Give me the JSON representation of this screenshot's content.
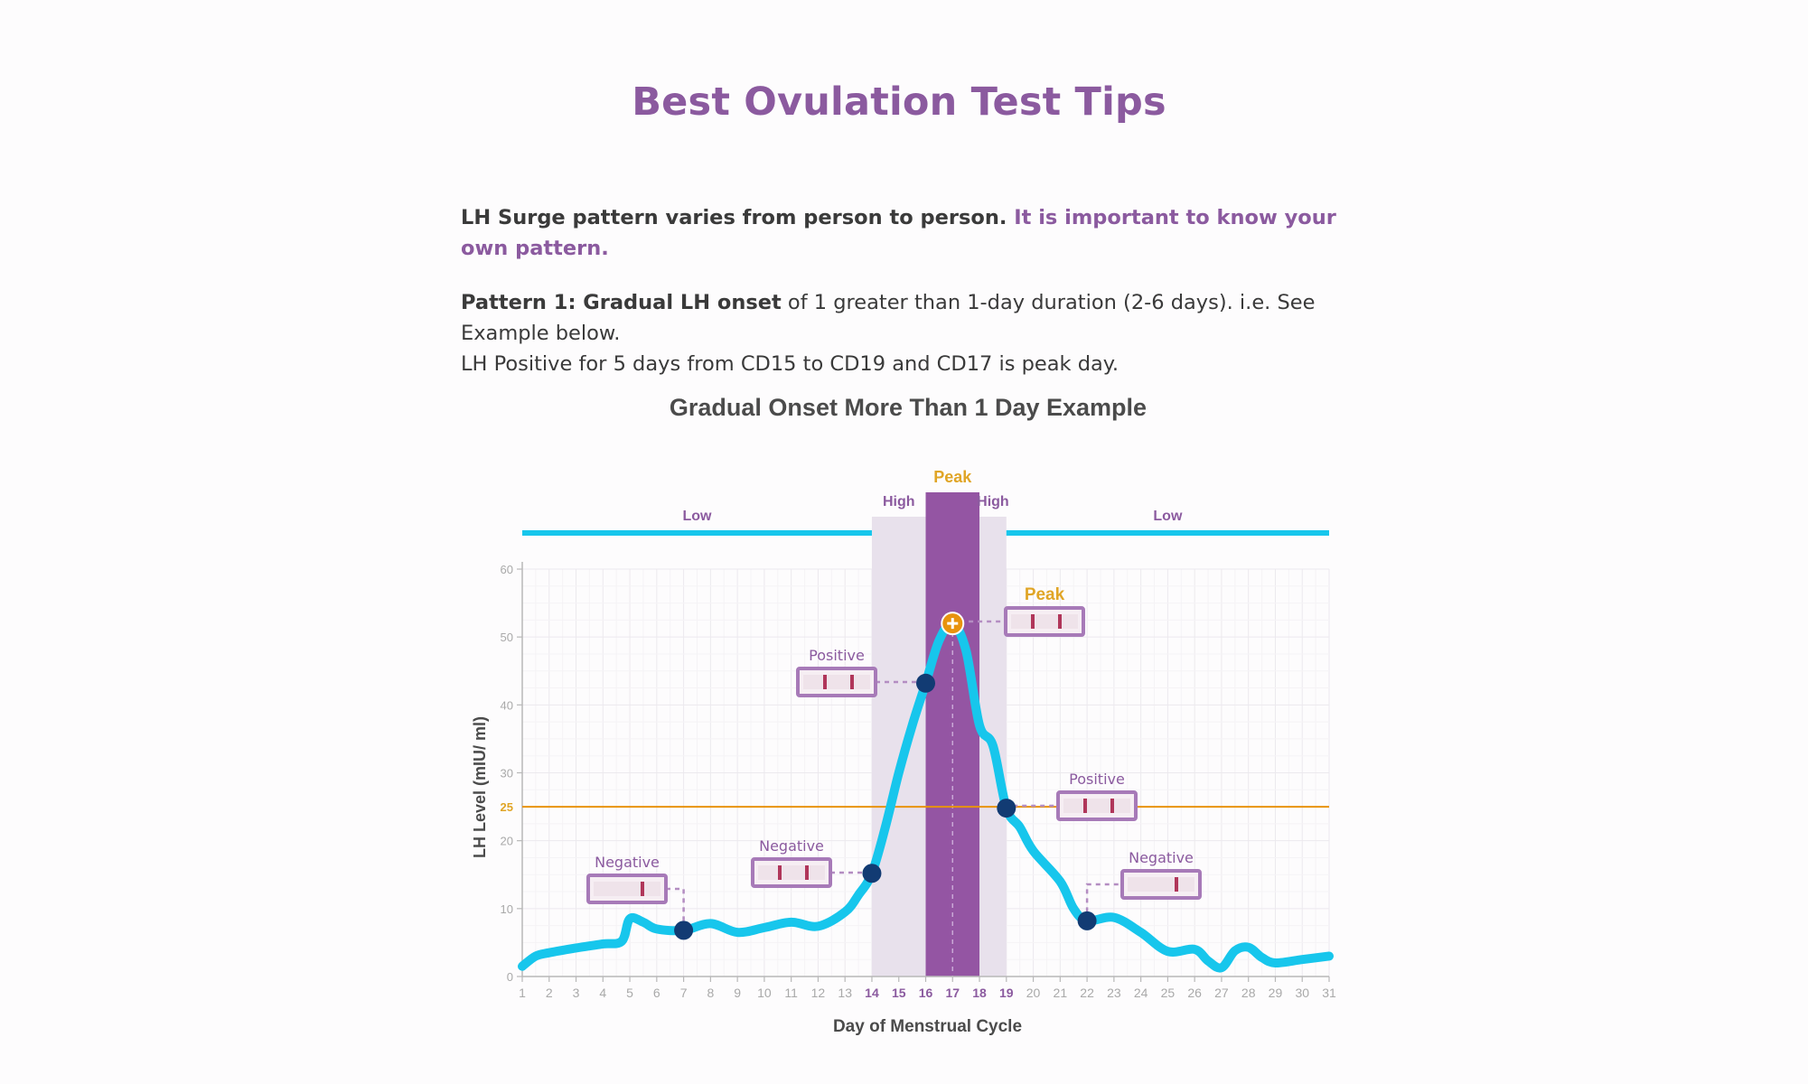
{
  "page": {
    "title": "Best Ovulation Test Tips",
    "intro_line1_a": "LH Surge pattern varies from person to person.",
    "intro_line1_b": "It is important to know your own pattern.",
    "pattern_label": "Pattern 1: Gradual LH onset",
    "pattern_text": "of 1 greater than 1-day duration (2-6 days). i.e. See Example below.",
    "pattern_line2": "LH Positive for 5 days from CD15 to CD19 and CD17 is peak day."
  },
  "colors": {
    "accent": "#8b5a9f",
    "curve": "#17c6ec",
    "peak_band": "#9455a3",
    "high_band": "#e8e1ec",
    "threshold": "#e8930e",
    "peak_label": "#e0a526",
    "marker": "#123b73"
  },
  "chart_data": {
    "type": "line",
    "title": "Gradual Onset More Than 1 Day Example",
    "xlabel": "Day of Menstrual Cycle",
    "ylabel": "LH Level (mIU/ ml)",
    "xlim": [
      1,
      31
    ],
    "ylim": [
      0,
      60
    ],
    "y_ticks": [
      0,
      10,
      20,
      30,
      40,
      50,
      60
    ],
    "x_ticks": [
      1,
      2,
      3,
      4,
      5,
      6,
      7,
      8,
      9,
      10,
      11,
      12,
      13,
      14,
      15,
      16,
      17,
      18,
      19,
      20,
      21,
      22,
      23,
      24,
      25,
      26,
      27,
      28,
      29,
      30,
      31
    ],
    "bold_x_ticks": [
      14,
      15,
      16,
      17,
      18,
      19
    ],
    "grid": true,
    "threshold": {
      "value": 25,
      "label": "25"
    },
    "series": [
      {
        "name": "",
        "x": [
          1,
          1.5,
          2,
          3,
          4,
          4.7,
          5,
          5.5,
          6,
          7,
          8,
          9,
          10,
          11,
          12,
          13,
          13.5,
          14,
          14.5,
          15,
          15.5,
          16,
          16.5,
          17,
          17.5,
          18,
          18.5,
          19,
          19.5,
          20,
          21,
          21.5,
          22,
          23,
          24,
          25,
          26,
          26.5,
          27,
          27.5,
          28,
          28.5,
          29,
          30,
          31
        ],
        "y": [
          1.5,
          3,
          3.5,
          4.2,
          4.8,
          5.2,
          8.5,
          8,
          7,
          6.8,
          7.8,
          6.5,
          7.2,
          8,
          7.4,
          9.5,
          12,
          15.2,
          22,
          30,
          37,
          43.2,
          49.5,
          52,
          48,
          37,
          34,
          24.8,
          22,
          18.5,
          14,
          10,
          8.2,
          8.7,
          6.5,
          3.7,
          4,
          2.3,
          1.3,
          3.8,
          4.3,
          2.8,
          2,
          2.5,
          3
        ]
      }
    ],
    "bands": [
      {
        "label": "Low",
        "from": 1,
        "to": 14
      },
      {
        "label": "High",
        "from": 14,
        "to": 16
      },
      {
        "label": "Peak",
        "from": 16,
        "to": 18
      },
      {
        "label": "High",
        "from": 18,
        "to": 19
      },
      {
        "label": "Low",
        "from": 19,
        "to": 31
      }
    ],
    "annotations": [
      {
        "label": "Negative",
        "day": 7,
        "value": 6.8,
        "lines": 1
      },
      {
        "label": "Negative",
        "day": 14,
        "value": 15.2,
        "lines": 2
      },
      {
        "label": "Positive",
        "day": 16,
        "value": 43.2,
        "lines": 2
      },
      {
        "label": "Peak",
        "day": 17,
        "value": 52,
        "lines": 2
      },
      {
        "label": "Positive",
        "day": 19,
        "value": 24.8,
        "lines": 2
      },
      {
        "label": "Negative",
        "day": 22,
        "value": 8.2,
        "lines": 1
      }
    ]
  }
}
